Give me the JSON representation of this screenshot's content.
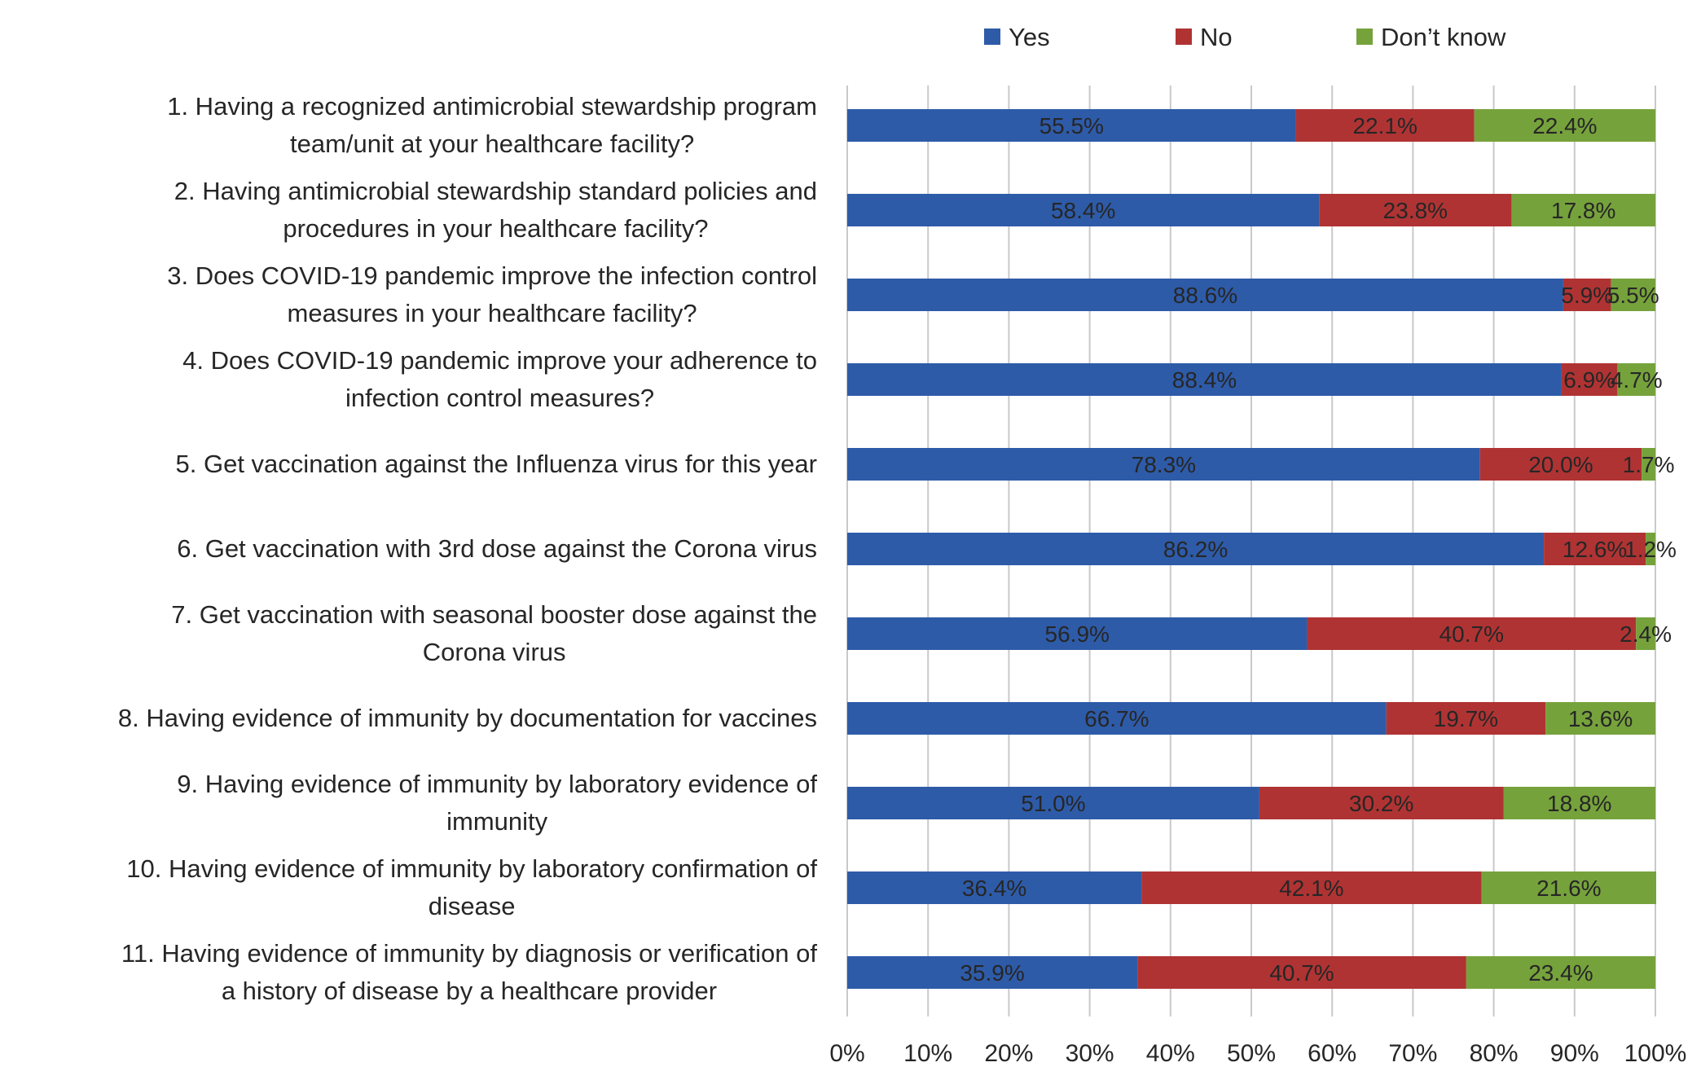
{
  "chart_data": {
    "type": "bar",
    "orientation": "horizontal",
    "stacked": true,
    "title": "",
    "xlabel": "",
    "ylabel": "",
    "xlim": [
      0,
      100
    ],
    "x_unit": "%",
    "grid": true,
    "legend_position": "top",
    "ticks": [
      "0%",
      "10%",
      "20%",
      "30%",
      "40%",
      "50%",
      "60%",
      "70%",
      "80%",
      "90%",
      "100%"
    ],
    "categories": [
      [
        "1. Having a recognized antimicrobial stewardship program",
        "team/unit at your healthcare facility?"
      ],
      [
        "2. Having antimicrobial stewardship standard policies and",
        "procedures in your healthcare facility?"
      ],
      [
        "3. Does COVID-19 pandemic improve the infection control",
        "measures in your healthcare facility?"
      ],
      [
        "4. Does COVID-19 pandemic improve your adherence to",
        "infection control measures?"
      ],
      [
        "5. Get vaccination against the Influenza virus for this year"
      ],
      [
        "6. Get vaccination with 3rd dose against the Corona virus"
      ],
      [
        "7. Get vaccination with seasonal booster dose against the",
        "Corona virus"
      ],
      [
        "8. Having evidence of immunity by documentation for vaccines"
      ],
      [
        "9. Having evidence of immunity by laboratory evidence of",
        "immunity"
      ],
      [
        "10. Having evidence of immunity by laboratory confirmation of",
        "disease"
      ],
      [
        "11. Having evidence of immunity by diagnosis or verification of",
        "a history of disease by a healthcare provider"
      ]
    ],
    "series": [
      {
        "name": "Yes",
        "color": "#2e5ba8",
        "values": [
          55.5,
          58.4,
          88.6,
          88.4,
          78.3,
          86.2,
          56.9,
          66.7,
          51.0,
          36.4,
          35.9
        ]
      },
      {
        "name": "No",
        "color": "#b03333",
        "values": [
          22.1,
          23.8,
          5.9,
          6.9,
          20.0,
          12.6,
          40.7,
          19.7,
          30.2,
          42.1,
          40.7
        ]
      },
      {
        "name": "Don’t know",
        "color": "#76a23c",
        "values": [
          22.4,
          17.8,
          5.5,
          4.7,
          1.7,
          1.2,
          2.4,
          13.6,
          18.8,
          21.6,
          23.4
        ]
      }
    ]
  }
}
